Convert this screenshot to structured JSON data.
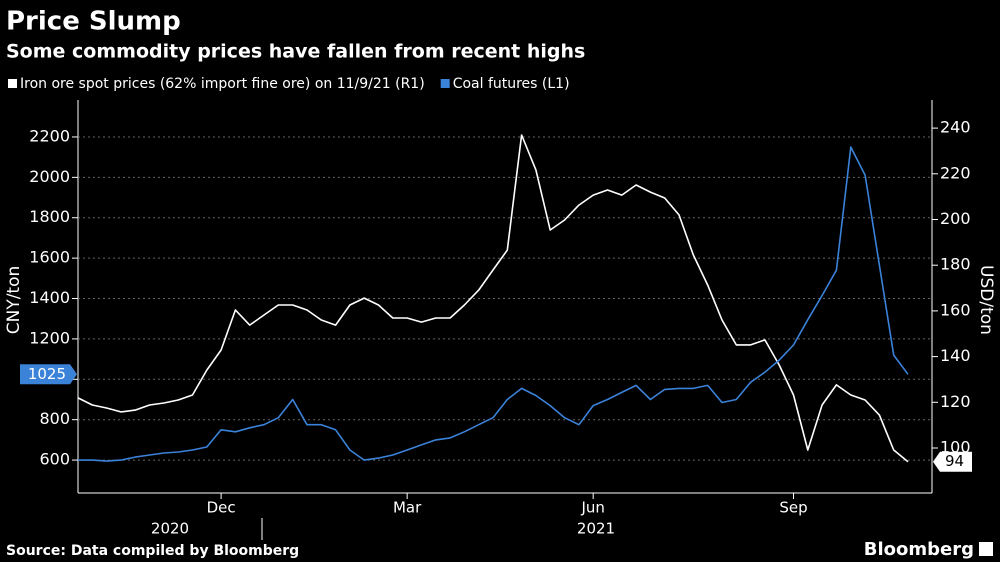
{
  "chart_data": {
    "type": "line",
    "title": "Price Slump",
    "subtitle": "Some commodity prices have fallen from recent highs",
    "source": "Source: Data compiled by Bloomberg",
    "brand": "Bloomberg",
    "ylabel": "CNY/ton",
    "y2label": "USD/ton",
    "categories": [
      null,
      null,
      null,
      null,
      null,
      null,
      null,
      null,
      null,
      null,
      "Dec",
      null,
      null,
      null,
      null,
      null,
      null,
      null,
      null,
      null,
      null,
      null,
      null,
      "Mar",
      null,
      null,
      null,
      null,
      null,
      null,
      null,
      null,
      null,
      null,
      null,
      null,
      "Jun",
      null,
      null,
      null,
      null,
      null,
      null,
      null,
      null,
      null,
      null,
      null,
      null,
      null,
      "Sep",
      null,
      null,
      null,
      null,
      null,
      null,
      null,
      null
    ],
    "years": [
      "2020",
      "2021"
    ],
    "ylim": [
      437,
      2383
    ],
    "yticks": [
      600,
      800,
      1000,
      1200,
      1400,
      1600,
      1800,
      2000,
      2200
    ],
    "y2lim": [
      80.3,
      252.3
    ],
    "y2ticks": [
      100,
      120,
      140,
      160,
      180,
      200,
      220,
      240
    ],
    "grid": true,
    "series": [
      {
        "name": "Iron ore spot prices (62% import fine ore)  on 11/9/21 (R1)",
        "color": "#ffffff",
        "axis": "y2",
        "values": [
          121.9,
          118.8,
          117.5,
          115.8,
          116.6,
          118.8,
          119.7,
          121,
          123.2,
          134.1,
          142.9,
          160.4,
          153.8,
          158.2,
          162.6,
          162.6,
          160.4,
          156,
          153.8,
          162.6,
          165.6,
          162.6,
          156.9,
          156.9,
          155.1,
          156.9,
          156.9,
          162.6,
          169.1,
          177.9,
          186.6,
          237,
          221.7,
          195.4,
          199.8,
          206.3,
          210.7,
          212.9,
          210.7,
          215.1,
          212,
          209.4,
          202,
          184.5,
          171.3,
          156,
          145.1,
          145.1,
          147.3,
          136.3,
          123.2,
          99.1,
          118.8,
          127.6,
          123.2,
          121,
          114.4,
          99.1,
          94
        ]
      },
      {
        "name": "Coal futures (L1)",
        "color": "#3b82d9",
        "axis": "y",
        "values": [
          600,
          600,
          595,
          600,
          615,
          625,
          635,
          640,
          650,
          665,
          750,
          740,
          760,
          775,
          810,
          900,
          775,
          775,
          750,
          650,
          600,
          610,
          625,
          650,
          675,
          700,
          710,
          740,
          775,
          810,
          900,
          955,
          920,
          870,
          810,
          775,
          870,
          900,
          935,
          970,
          900,
          950,
          955,
          955,
          970,
          885,
          900,
          985,
          1035,
          1095,
          1170,
          1295,
          1415,
          1540,
          2150,
          2011,
          1565,
          1120,
          1025
        ]
      }
    ]
  }
}
